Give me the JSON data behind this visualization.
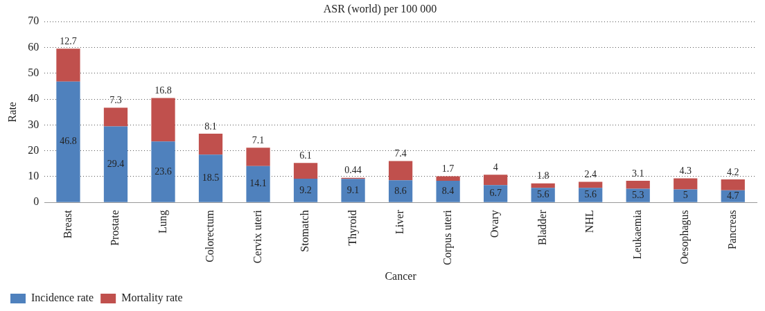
{
  "chart_data": {
    "type": "bar",
    "title": "ASR (world) per 100 000",
    "xlabel": "Cancer",
    "ylabel": "Rate",
    "stacked": true,
    "categories": [
      "Breast",
      "Prostate",
      "Lung",
      "Colorectum",
      "Cervix uteri",
      "Stomatch",
      "Thyroid",
      "Liver",
      "Corpus uteri",
      "Ovary",
      "Bladder",
      "NHL",
      "Leukaemia",
      "Oesophagus",
      "Pancreas"
    ],
    "series": [
      {
        "name": "Incidence rate",
        "color": "#4f81bd",
        "values": [
          46.8,
          29.4,
          23.6,
          18.5,
          14.1,
          9.2,
          9.1,
          8.6,
          8.4,
          6.7,
          5.6,
          5.6,
          5.3,
          5,
          4.7
        ]
      },
      {
        "name": "Mortality rate",
        "color": "#c0504d",
        "values": [
          12.7,
          7.3,
          16.8,
          8.1,
          7.1,
          6.1,
          0.44,
          7.4,
          1.7,
          4,
          1.8,
          2.4,
          3.1,
          4.3,
          4.2
        ]
      }
    ],
    "ylim": [
      0,
      70
    ],
    "yticks": [
      0,
      10,
      20,
      30,
      40,
      50,
      60,
      70
    ],
    "grid": "y",
    "legend": "bottom left",
    "data_labels": true
  }
}
